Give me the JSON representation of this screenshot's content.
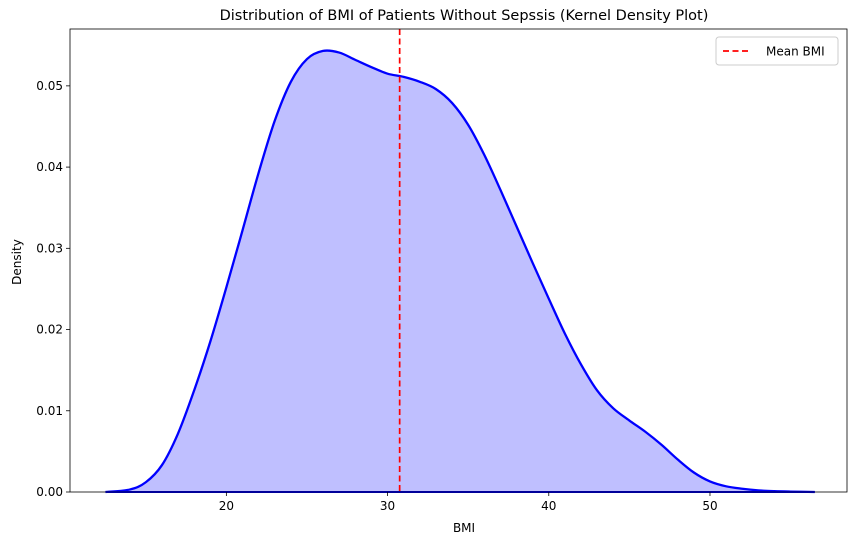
{
  "chart_data": {
    "type": "area",
    "title": "Distribution of BMI of Patients Without Sepssis (Kernel Density Plot)",
    "xlabel": "BMI",
    "ylabel": "Density",
    "xlim": [
      10.3,
      58.5
    ],
    "ylim": [
      0,
      0.057
    ],
    "x_ticks": [
      20,
      30,
      40,
      50
    ],
    "x_tick_labels": [
      "20",
      "30",
      "40",
      "50"
    ],
    "y_ticks": [
      0.0,
      0.01,
      0.02,
      0.03,
      0.04,
      0.05
    ],
    "y_tick_labels": [
      "0.00",
      "0.01",
      "0.02",
      "0.03",
      "0.04",
      "0.05"
    ],
    "grid": false,
    "series": [
      {
        "x": [
          12.5,
          14,
          15,
          16,
          17,
          18,
          19,
          20,
          21,
          22,
          23,
          24,
          25,
          26,
          27,
          28,
          29,
          30,
          31,
          32,
          33,
          34,
          35,
          36,
          37,
          38,
          39,
          40,
          41,
          42,
          43,
          44,
          45,
          46,
          47,
          48,
          49,
          50,
          51,
          52,
          53,
          54,
          55,
          56.5
        ],
        "y": [
          0.0,
          0.0003,
          0.0012,
          0.0033,
          0.0072,
          0.0125,
          0.0185,
          0.0252,
          0.0322,
          0.0393,
          0.0457,
          0.0505,
          0.0533,
          0.0543,
          0.0541,
          0.0532,
          0.0523,
          0.0515,
          0.0511,
          0.0505,
          0.0496,
          0.0479,
          0.0452,
          0.0415,
          0.0372,
          0.0327,
          0.0282,
          0.0238,
          0.0195,
          0.0157,
          0.0125,
          0.0103,
          0.0088,
          0.0074,
          0.0058,
          0.004,
          0.0024,
          0.0013,
          0.0007,
          0.0004,
          0.0002,
          0.0001,
          5e-05,
          0.0
        ],
        "line_color": "#0000ff",
        "fill_color": "#bfbfff"
      }
    ],
    "reference_lines": [
      {
        "name": "Mean BMI",
        "x": 30.75,
        "color": "#ff0000",
        "style": "dashed"
      }
    ],
    "legend": {
      "position": "top-right",
      "entries": [
        {
          "label": "Mean BMI",
          "color": "#ff0000",
          "style": "dashed"
        }
      ]
    }
  }
}
